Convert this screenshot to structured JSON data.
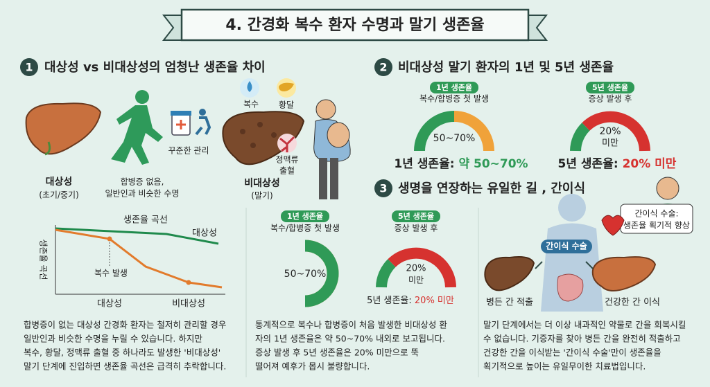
{
  "header": {
    "title": "4. 간경화 복수 환자 수명과 말기 생존율"
  },
  "section1": {
    "number": "1",
    "heading": "대상성 vs 비대상성의 엄청난 생존율 차이",
    "care_label": "꾸준한 관리",
    "compensated": {
      "label": "대상성",
      "sub": "(초기/중기)",
      "desc": [
        "합병증 없음,",
        "일반인과 비슷한 수명"
      ]
    },
    "symptoms": {
      "ascites": "복수",
      "jaundice": "황달",
      "varices": [
        "정맥류",
        "출혈"
      ]
    },
    "decompensated": {
      "label": "비대상성",
      "sub": "(말기)"
    },
    "curve": {
      "title": "생존율 곡선",
      "y_label": "생존율 곡선",
      "line_label": "대상성",
      "event_label": "복수 발생",
      "x_labels": [
        "대상성",
        "비대상성"
      ]
    },
    "paragraph": [
      "합병증이 없는 대상성 간경화 환자는 철저히 관리할 경우",
      "일반인과 비슷한 수명을 누릴 수 있습니다. 하지만",
      "복수, 황달, 정맥류 출혈 중 하나라도 발생한 '비대상성'",
      "말기 단계에 진입하면 생존율 곡선은 급격히 추락합니다."
    ]
  },
  "section2": {
    "number": "2",
    "heading": "비대상성 말기 환자의 1년 및 5년 생존율",
    "gauge1": {
      "badge": "1년 생존율",
      "sub": "복수/합병증 첫 발생",
      "center": "50~70%",
      "caption": "1년 생존율: ",
      "caption_value": "약 50~70%"
    },
    "gauge2": {
      "badge": "5년 생존율",
      "sub": "증상 발생 후",
      "center": [
        "20%",
        "미만"
      ],
      "caption": "5년 생존율: ",
      "caption_value": "20% 미만"
    }
  },
  "middle": {
    "donut": {
      "badge": "1년 생존율",
      "sub": "복수/합병증 첫 발생",
      "center": "50~70%"
    },
    "gauge": {
      "badge": "5년 생존율",
      "sub": "증상 발생 후",
      "center": [
        "20%",
        "미만"
      ],
      "caption": "5년 생존율: ",
      "caption_value": "20% 미만"
    },
    "paragraph": [
      "통계적으로 복수나 합병증이 처음 발생한 비대상성 환",
      "자의 1년 생존율은 약 50~70% 내외로 보고됩니다.",
      "증상 발생 후 5년 생존율은 20% 미만으로 뚝",
      "떨어져 예후가 몹시 불량합니다."
    ]
  },
  "section3": {
    "number": "3",
    "heading": "생명을 연장하는 유일한 길 , 간이식",
    "surgery_pill": "간이식 수술",
    "bubble": [
      "간이식 수술:",
      "생존율 획기적 향상"
    ],
    "removed": "병든 간 적출",
    "transplanted": "건강한 간 이식",
    "paragraph": [
      "말기 단계에서는 더 이상 내과적인 약물로 간을 회복시킬",
      "수 없습니다. 기증자를 찾아 병든 간을 완전히 적출하고",
      "건강한 간을 이식받는 '간이식 수술'만이 생존율을",
      "획기적으로 높이는 유일무이한 치료법입니다."
    ]
  }
}
